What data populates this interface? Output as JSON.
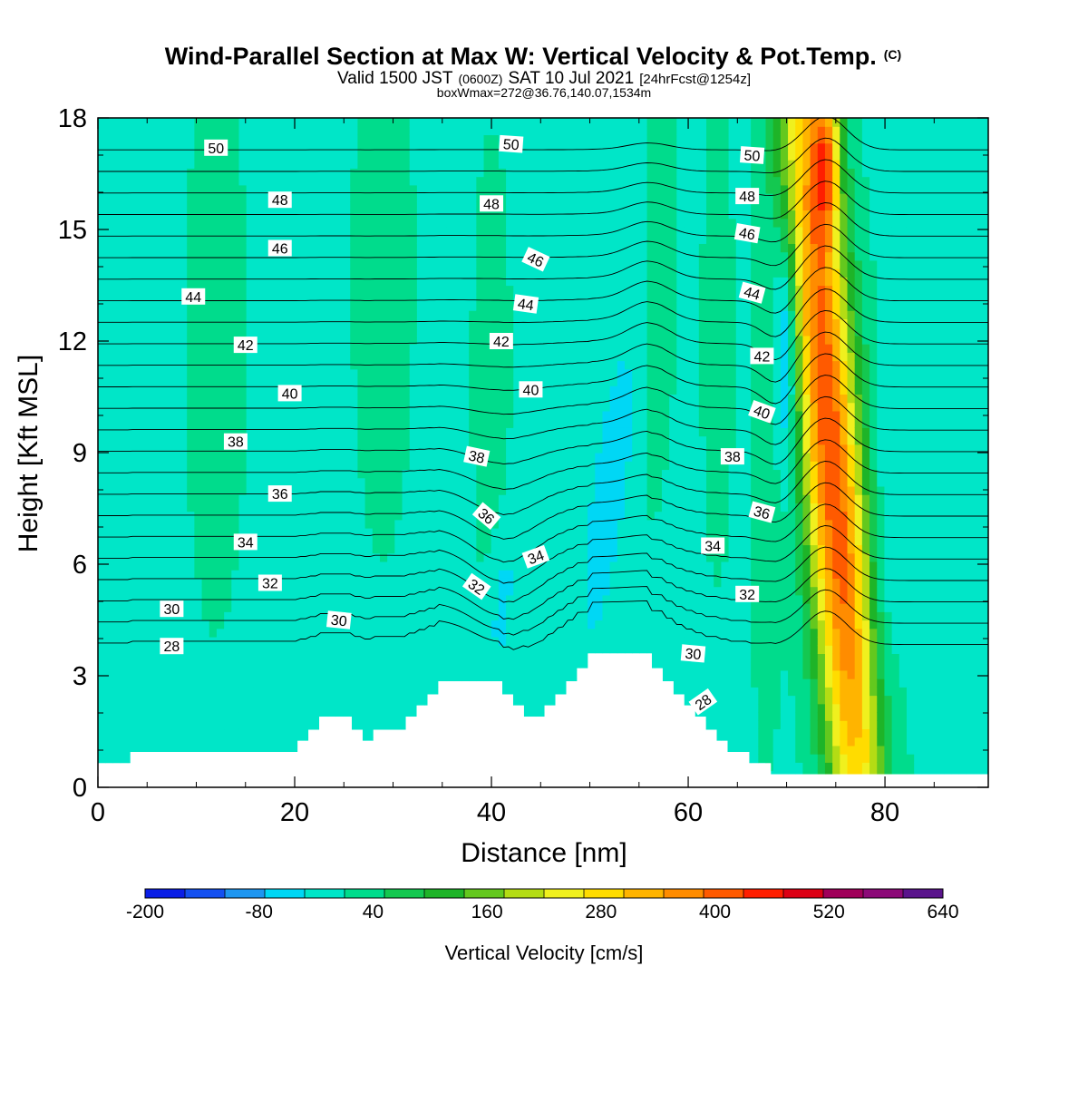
{
  "chart_data": {
    "type": "heatmap",
    "title": "Wind-Parallel Section at Max W: Vertical Velocity & Pot.Temp.",
    "title_mark": "(C)",
    "subtitle_parts": [
      "Valid 1500 JST",
      "(0600Z)",
      "SAT 10 Jul 2021",
      "[24hrFcst@1254z]"
    ],
    "subtitle2": "boxWmax=272@36.76,140.07,1534m",
    "xlabel": "Distance [nm]",
    "ylabel": "Height [Kft MSL]",
    "xlim": [
      0,
      90.5
    ],
    "ylim": [
      0,
      18
    ],
    "x_ticks": [
      0,
      20,
      40,
      60,
      80
    ],
    "y_ticks": [
      0,
      3,
      6,
      9,
      12,
      15,
      18
    ],
    "colorbar": {
      "label": "Vertical Velocity [cm/s]",
      "range": [
        -200,
        640
      ],
      "ticks": [
        -200,
        -80,
        40,
        160,
        280,
        400,
        520,
        640
      ],
      "colors": [
        "#0a1ee6",
        "#1450f0",
        "#1e96f0",
        "#00d7f5",
        "#00e6c8",
        "#00dc8c",
        "#14c850",
        "#1eb428",
        "#64c81e",
        "#b4dc14",
        "#f0f01e",
        "#ffdc00",
        "#ffb400",
        "#ff8c00",
        "#ff5a00",
        "#ff1e00",
        "#dc0014",
        "#a0005a",
        "#8c0a78",
        "#5a148c"
      ]
    },
    "background_value": 0,
    "terrain": [
      [
        0,
        0.65
      ],
      [
        3.3,
        0.65
      ],
      [
        3.3,
        0.95
      ],
      [
        20.3,
        0.95
      ],
      [
        20.3,
        1.25
      ],
      [
        21.4,
        1.25
      ],
      [
        21.4,
        1.55
      ],
      [
        22.5,
        1.55
      ],
      [
        22.5,
        1.9
      ],
      [
        25.8,
        1.9
      ],
      [
        25.8,
        1.55
      ],
      [
        26.9,
        1.55
      ],
      [
        26.9,
        1.25
      ],
      [
        28.0,
        1.25
      ],
      [
        28.0,
        1.55
      ],
      [
        31.3,
        1.55
      ],
      [
        31.3,
        1.9
      ],
      [
        32.4,
        1.9
      ],
      [
        32.4,
        2.2
      ],
      [
        33.5,
        2.2
      ],
      [
        33.5,
        2.5
      ],
      [
        34.6,
        2.5
      ],
      [
        34.6,
        2.85
      ],
      [
        41.1,
        2.85
      ],
      [
        41.1,
        2.5
      ],
      [
        42.2,
        2.5
      ],
      [
        42.2,
        2.2
      ],
      [
        43.3,
        2.2
      ],
      [
        43.3,
        1.9
      ],
      [
        45.4,
        1.9
      ],
      [
        45.4,
        2.2
      ],
      [
        46.5,
        2.2
      ],
      [
        46.5,
        2.5
      ],
      [
        47.6,
        2.5
      ],
      [
        47.6,
        2.85
      ],
      [
        48.7,
        2.85
      ],
      [
        48.7,
        3.2
      ],
      [
        49.8,
        3.2
      ],
      [
        49.8,
        3.6
      ],
      [
        56.3,
        3.6
      ],
      [
        56.3,
        3.2
      ],
      [
        57.4,
        3.2
      ],
      [
        57.4,
        2.85
      ],
      [
        58.5,
        2.85
      ],
      [
        58.5,
        2.5
      ],
      [
        59.6,
        2.5
      ],
      [
        59.6,
        2.2
      ],
      [
        60.7,
        2.2
      ],
      [
        60.7,
        1.9
      ],
      [
        61.8,
        1.9
      ],
      [
        61.8,
        1.55
      ],
      [
        62.9,
        1.55
      ],
      [
        62.9,
        1.25
      ],
      [
        64.0,
        1.25
      ],
      [
        64.0,
        0.95
      ],
      [
        66.2,
        0.95
      ],
      [
        66.2,
        0.65
      ],
      [
        68.4,
        0.65
      ],
      [
        68.4,
        0.35
      ],
      [
        90.5,
        0.35
      ]
    ],
    "velocity_features": [
      {
        "x": 74.5,
        "y": 9,
        "sx": 2.2,
        "sy": 10,
        "tilt": -0.3,
        "value": 420
      },
      {
        "x": 74,
        "y": 17,
        "sx": 1.0,
        "sy": 1.5,
        "tilt": 0,
        "value": 230
      },
      {
        "x": 70,
        "y": 12,
        "sx": 0.9,
        "sy": 2.4,
        "tilt": 0,
        "value": -150
      },
      {
        "x": 52,
        "y": 8,
        "sx": 1.6,
        "sy": 3.5,
        "tilt": 0.5,
        "value": -55
      },
      {
        "x": 41,
        "y": 5,
        "sx": 1.0,
        "sy": 1.8,
        "tilt": 0.3,
        "value": -50
      },
      {
        "x": 57,
        "y": 14,
        "sx": 1.2,
        "sy": 4,
        "tilt": 0.1,
        "value": 45
      },
      {
        "x": 63,
        "y": 12,
        "sx": 1.0,
        "sy": 4,
        "tilt": 0,
        "value": 40
      },
      {
        "x": 40,
        "y": 11,
        "sx": 1.2,
        "sy": 4,
        "tilt": 0,
        "value": 40
      },
      {
        "x": 12,
        "y": 12,
        "sx": 2.0,
        "sy": 5,
        "tilt": 0,
        "value": 35
      },
      {
        "x": 29,
        "y": 14,
        "sx": 2.0,
        "sy": 5,
        "tilt": 0,
        "value": 35
      },
      {
        "x": 80,
        "y": 6,
        "sx": 1.2,
        "sy": 3,
        "tilt": 0,
        "value": -40
      },
      {
        "x": 68,
        "y": 7,
        "sx": 1.0,
        "sy": 4,
        "tilt": 0,
        "value": 40
      }
    ],
    "contour_levels": [
      28,
      29,
      30,
      31,
      32,
      33,
      34,
      35,
      36,
      37,
      38,
      39,
      40,
      41,
      42,
      43,
      44,
      45,
      46,
      47,
      48,
      49,
      50,
      51
    ],
    "contour_labels": [
      {
        "text": "50",
        "x": 12.0,
        "y": 17.2,
        "angle": 0
      },
      {
        "text": "48",
        "x": 18.5,
        "y": 15.8,
        "angle": 0
      },
      {
        "text": "46",
        "x": 18.5,
        "y": 14.5,
        "angle": 0
      },
      {
        "text": "44",
        "x": 9.7,
        "y": 13.2,
        "angle": 0
      },
      {
        "text": "42",
        "x": 15.0,
        "y": 11.9,
        "angle": 0
      },
      {
        "text": "40",
        "x": 19.5,
        "y": 10.6,
        "angle": 0
      },
      {
        "text": "38",
        "x": 14.0,
        "y": 9.3,
        "angle": 0
      },
      {
        "text": "36",
        "x": 18.5,
        "y": 7.9,
        "angle": 0
      },
      {
        "text": "34",
        "x": 15.0,
        "y": 6.6,
        "angle": 0
      },
      {
        "text": "32",
        "x": 17.5,
        "y": 5.5,
        "angle": 0
      },
      {
        "text": "30",
        "x": 7.5,
        "y": 4.8,
        "angle": 0
      },
      {
        "text": "28",
        "x": 7.5,
        "y": 3.8,
        "angle": 0
      },
      {
        "text": "30",
        "x": 24.5,
        "y": 4.5,
        "angle": 6
      },
      {
        "text": "50",
        "x": 42.0,
        "y": 17.3,
        "angle": 4
      },
      {
        "text": "48",
        "x": 40.0,
        "y": 15.7,
        "angle": 0
      },
      {
        "text": "46",
        "x": 44.5,
        "y": 14.2,
        "angle": 25
      },
      {
        "text": "44",
        "x": 43.5,
        "y": 13.0,
        "angle": 8
      },
      {
        "text": "42",
        "x": 41.0,
        "y": 12.0,
        "angle": 0
      },
      {
        "text": "40",
        "x": 44.0,
        "y": 10.7,
        "angle": 0
      },
      {
        "text": "38",
        "x": 38.5,
        "y": 8.9,
        "angle": 12
      },
      {
        "text": "36",
        "x": 39.5,
        "y": 7.3,
        "angle": 40
      },
      {
        "text": "34",
        "x": 44.5,
        "y": 6.2,
        "angle": -20
      },
      {
        "text": "32",
        "x": 38.5,
        "y": 5.4,
        "angle": 35
      },
      {
        "text": "50",
        "x": 66.5,
        "y": 17.0,
        "angle": 4
      },
      {
        "text": "48",
        "x": 66.0,
        "y": 15.9,
        "angle": 0
      },
      {
        "text": "46",
        "x": 66.0,
        "y": 14.9,
        "angle": 10
      },
      {
        "text": "44",
        "x": 66.5,
        "y": 13.3,
        "angle": 15
      },
      {
        "text": "42",
        "x": 67.5,
        "y": 11.6,
        "angle": 0
      },
      {
        "text": "40",
        "x": 67.5,
        "y": 10.1,
        "angle": 20
      },
      {
        "text": "38",
        "x": 64.5,
        "y": 8.9,
        "angle": 0
      },
      {
        "text": "36",
        "x": 67.5,
        "y": 7.4,
        "angle": 15
      },
      {
        "text": "34",
        "x": 62.5,
        "y": 6.5,
        "angle": 0
      },
      {
        "text": "32",
        "x": 66.0,
        "y": 5.2,
        "angle": 0
      },
      {
        "text": "30",
        "x": 60.5,
        "y": 3.6,
        "angle": 5
      },
      {
        "text": "28",
        "x": 61.5,
        "y": 2.3,
        "angle": -35
      }
    ]
  }
}
